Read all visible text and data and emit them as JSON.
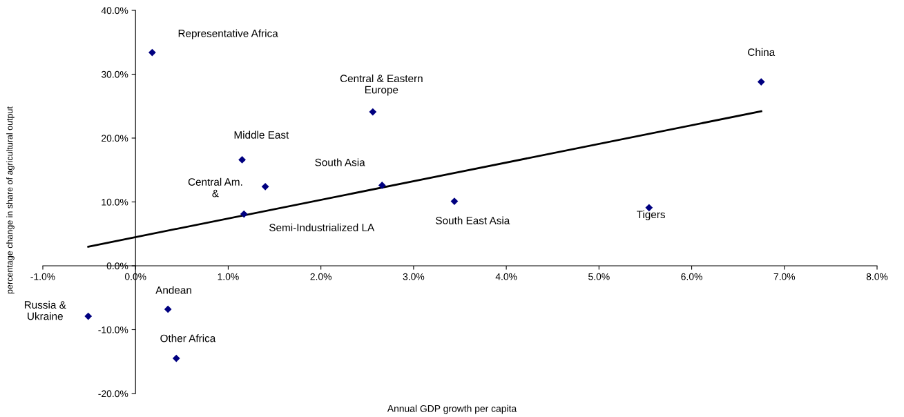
{
  "chart_data": {
    "type": "scatter",
    "xlabel": "Annual GDP growth per capita",
    "ylabel": "percentage change in share of agricultural output",
    "x": [
      0.18,
      6.75,
      2.56,
      1.15,
      1.4,
      2.66,
      3.44,
      5.54,
      1.17,
      -0.51,
      0.35,
      0.44
    ],
    "series": [
      {
        "color": "#000080",
        "marker": "diamond",
        "values": [
          33.4,
          28.8,
          24.1,
          16.6,
          12.4,
          12.6,
          10.1,
          9.1,
          8.1,
          -7.9,
          -6.8,
          -14.5
        ]
      },
      {
        "type": "line",
        "marker": "none",
        "color": "#000000",
        "x": [
          -0.51,
          6.75
        ],
        "values": [
          3.0,
          24.2
        ]
      }
    ],
    "annotations": [
      {
        "text": "Representative Africa",
        "x": 0.18,
        "y": 33.4
      },
      {
        "text": "China",
        "x": 6.75,
        "y": 28.8
      },
      {
        "text": "Central & Eastern\nEurope",
        "x": 2.56,
        "y": 24.1
      },
      {
        "text": "Middle East",
        "x": 1.15,
        "y": 16.6
      },
      {
        "text": "Central Am.\n&",
        "x": 1.4,
        "y": 12.4
      },
      {
        "text": "South Asia",
        "x": 2.66,
        "y": 12.6
      },
      {
        "text": "South East Asia",
        "x": 3.44,
        "y": 10.1
      },
      {
        "text": "Tigers",
        "x": 5.54,
        "y": 9.1
      },
      {
        "text": "Semi-Industrialized LA",
        "x": 1.17,
        "y": 8.1
      },
      {
        "text": "Russia &\nUkraine",
        "x": -0.51,
        "y": -7.9
      },
      {
        "text": "Andean",
        "x": 0.35,
        "y": -6.8
      },
      {
        "text": "Other Africa",
        "x": 0.44,
        "y": -14.5
      }
    ],
    "xlim": [
      -1,
      8
    ],
    "ylim": [
      -20,
      40
    ],
    "xticks": [
      {
        "value": -1,
        "label": "-1.0%"
      },
      {
        "value": 0,
        "label": "0.0%"
      },
      {
        "value": 1,
        "label": "1.0%"
      },
      {
        "value": 2,
        "label": "2.0%"
      },
      {
        "value": 3,
        "label": "3.0%"
      },
      {
        "value": 4,
        "label": "4.0%"
      },
      {
        "value": 5,
        "label": "5.0%"
      },
      {
        "value": 6,
        "label": "6.0%"
      },
      {
        "value": 7,
        "label": "7.0%"
      },
      {
        "value": 8,
        "label": "8.0%"
      }
    ],
    "yticks": [
      {
        "value": -20,
        "label": "-20.0%"
      },
      {
        "value": -10,
        "label": "-10.0%"
      },
      {
        "value": 0,
        "label": "0.0%"
      },
      {
        "value": 10,
        "label": "10.0%"
      },
      {
        "value": 20,
        "label": "20.0%"
      },
      {
        "value": 30,
        "label": "30.0%"
      },
      {
        "value": 40,
        "label": "40.0%"
      }
    ],
    "grid": false,
    "legend": false
  }
}
